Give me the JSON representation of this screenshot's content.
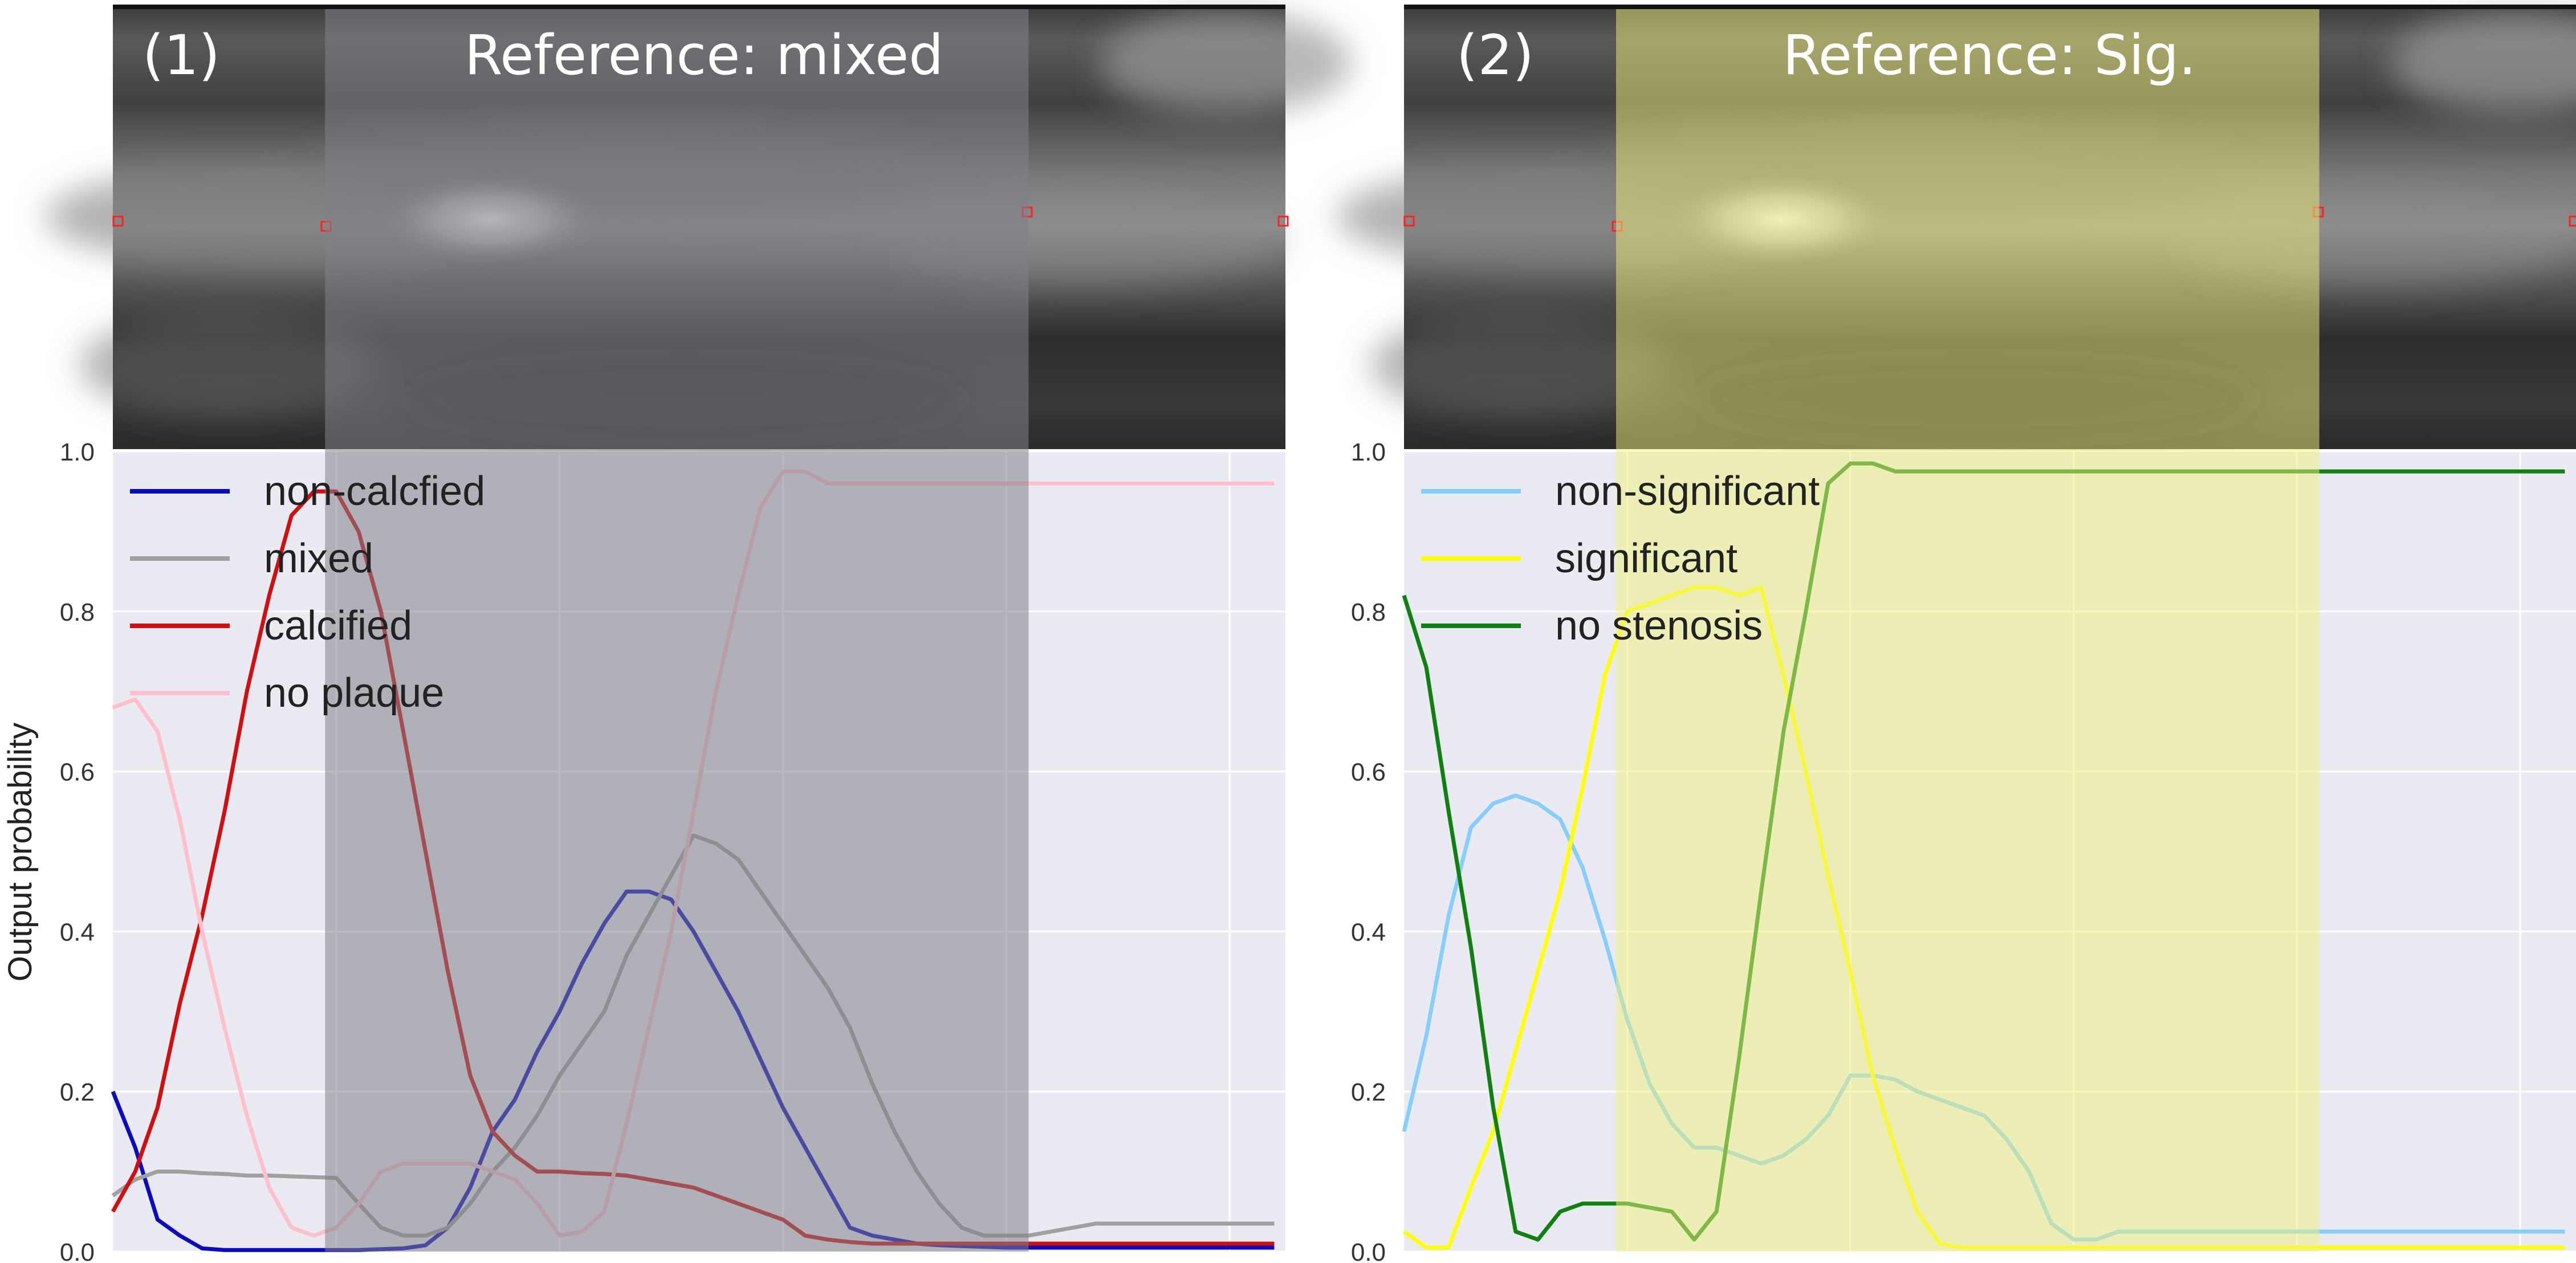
{
  "panels": [
    {
      "panel_label": "(1)",
      "reference_label": "Reference: mixed",
      "highlight_color": "#808088",
      "highlight_opacity": 0.55
    },
    {
      "panel_label": "(2)",
      "reference_label": "Reference: Sig.",
      "highlight_color": "#f0f07a",
      "highlight_opacity": 0.5
    }
  ],
  "chart_data": [
    {
      "type": "line",
      "title": "",
      "xlabel": "",
      "ylabel": "Output probability",
      "ylim": [
        0,
        1
      ],
      "yticks": [
        "0.0",
        "0.2",
        "0.4",
        "0.6",
        "0.8",
        "1.0"
      ],
      "grid": true,
      "legend_position": "top-left",
      "highlight_range": [
        9.5,
        41
      ],
      "xlim": [
        0,
        52.5
      ],
      "x": [
        0,
        1,
        2,
        3,
        4,
        5,
        6,
        7,
        8,
        9,
        10,
        11,
        12,
        13,
        14,
        15,
        16,
        17,
        18,
        19,
        20,
        21,
        22,
        23,
        24,
        25,
        26,
        27,
        28,
        29,
        30,
        31,
        32,
        33,
        34,
        35,
        36,
        37,
        38,
        39,
        40,
        41,
        42,
        43,
        44,
        45,
        46,
        47,
        48,
        49,
        50,
        51,
        52
      ],
      "series": [
        {
          "name": "non-calcfied",
          "color": "#0a0ac0",
          "values": [
            0.2,
            0.13,
            0.04,
            0.02,
            0.004,
            0.002,
            0.002,
            0.002,
            0.002,
            0.002,
            0.002,
            0.002,
            0.003,
            0.004,
            0.008,
            0.03,
            0.08,
            0.15,
            0.19,
            0.25,
            0.3,
            0.36,
            0.41,
            0.45,
            0.45,
            0.44,
            0.4,
            0.35,
            0.3,
            0.24,
            0.18,
            0.13,
            0.08,
            0.03,
            0.02,
            0.015,
            0.01,
            0.008,
            0.007,
            0.006,
            0.005,
            0.005,
            0.005,
            0.005,
            0.005,
            0.005,
            0.005,
            0.005,
            0.005,
            0.005,
            0.005,
            0.005,
            0.005
          ]
        },
        {
          "name": "mixed",
          "color": "#a0a0a0",
          "values": [
            0.07,
            0.09,
            0.1,
            0.1,
            0.098,
            0.097,
            0.095,
            0.095,
            0.094,
            0.093,
            0.092,
            0.06,
            0.03,
            0.02,
            0.02,
            0.03,
            0.06,
            0.1,
            0.13,
            0.17,
            0.22,
            0.26,
            0.3,
            0.37,
            0.42,
            0.47,
            0.52,
            0.51,
            0.49,
            0.45,
            0.41,
            0.37,
            0.33,
            0.28,
            0.21,
            0.15,
            0.1,
            0.06,
            0.03,
            0.02,
            0.02,
            0.02,
            0.025,
            0.03,
            0.035,
            0.035,
            0.035,
            0.035,
            0.035,
            0.035,
            0.035,
            0.035,
            0.035
          ]
        },
        {
          "name": "calcified",
          "color": "#d01010",
          "values": [
            0.05,
            0.1,
            0.18,
            0.31,
            0.42,
            0.55,
            0.7,
            0.82,
            0.92,
            0.95,
            0.95,
            0.9,
            0.8,
            0.65,
            0.5,
            0.35,
            0.22,
            0.15,
            0.12,
            0.1,
            0.1,
            0.098,
            0.097,
            0.095,
            0.09,
            0.085,
            0.08,
            0.07,
            0.06,
            0.05,
            0.04,
            0.02,
            0.015,
            0.012,
            0.01,
            0.01,
            0.01,
            0.01,
            0.01,
            0.01,
            0.01,
            0.01,
            0.01,
            0.01,
            0.01,
            0.01,
            0.01,
            0.01,
            0.01,
            0.01,
            0.01,
            0.01,
            0.01
          ]
        },
        {
          "name": "no plaque",
          "color": "#ffc0cb",
          "values": [
            0.68,
            0.69,
            0.65,
            0.54,
            0.4,
            0.28,
            0.17,
            0.08,
            0.03,
            0.02,
            0.03,
            0.06,
            0.1,
            0.11,
            0.11,
            0.11,
            0.11,
            0.1,
            0.09,
            0.06,
            0.02,
            0.025,
            0.05,
            0.16,
            0.28,
            0.4,
            0.55,
            0.7,
            0.82,
            0.93,
            0.975,
            0.975,
            0.96,
            0.96,
            0.96,
            0.96,
            0.96,
            0.96,
            0.96,
            0.96,
            0.96,
            0.96,
            0.96,
            0.96,
            0.96,
            0.96,
            0.96,
            0.96,
            0.96,
            0.96,
            0.96,
            0.96,
            0.96
          ]
        }
      ]
    },
    {
      "type": "line",
      "title": "",
      "xlabel": "",
      "ylabel": "",
      "ylim": [
        0,
        1
      ],
      "yticks": [
        "0.0",
        "0.2",
        "0.4",
        "0.6",
        "0.8",
        "1.0"
      ],
      "grid": true,
      "legend_position": "top-left",
      "highlight_range": [
        9.5,
        41
      ],
      "xlim": [
        0,
        52.5
      ],
      "x": [
        0,
        1,
        2,
        3,
        4,
        5,
        6,
        7,
        8,
        9,
        10,
        11,
        12,
        13,
        14,
        15,
        16,
        17,
        18,
        19,
        20,
        21,
        22,
        23,
        24,
        25,
        26,
        27,
        28,
        29,
        30,
        31,
        32,
        33,
        34,
        35,
        36,
        37,
        38,
        39,
        40,
        41,
        42,
        43,
        44,
        45,
        46,
        47,
        48,
        49,
        50,
        51,
        52
      ],
      "series": [
        {
          "name": "non-significant",
          "color": "#87cefa",
          "values": [
            0.15,
            0.27,
            0.42,
            0.53,
            0.56,
            0.57,
            0.56,
            0.54,
            0.48,
            0.39,
            0.29,
            0.21,
            0.16,
            0.13,
            0.13,
            0.12,
            0.11,
            0.12,
            0.14,
            0.17,
            0.22,
            0.22,
            0.215,
            0.2,
            0.19,
            0.18,
            0.17,
            0.14,
            0.1,
            0.035,
            0.015,
            0.015,
            0.025,
            0.025,
            0.025,
            0.025,
            0.025,
            0.025,
            0.025,
            0.025,
            0.025,
            0.025,
            0.025,
            0.025,
            0.025,
            0.025,
            0.025,
            0.025,
            0.025,
            0.025,
            0.025,
            0.025,
            0.025
          ]
        },
        {
          "name": "significant",
          "color": "#ffff00",
          "values": [
            0.025,
            0.005,
            0.005,
            0.08,
            0.15,
            0.25,
            0.35,
            0.45,
            0.58,
            0.72,
            0.8,
            0.81,
            0.82,
            0.83,
            0.83,
            0.82,
            0.83,
            0.72,
            0.6,
            0.47,
            0.35,
            0.22,
            0.13,
            0.05,
            0.01,
            0.005,
            0.005,
            0.005,
            0.005,
            0.005,
            0.005,
            0.005,
            0.005,
            0.005,
            0.005,
            0.005,
            0.005,
            0.005,
            0.005,
            0.005,
            0.005,
            0.005,
            0.005,
            0.005,
            0.005,
            0.005,
            0.005,
            0.005,
            0.005,
            0.005,
            0.005,
            0.005,
            0.005
          ]
        },
        {
          "name": "no stenosis",
          "color": "#108010",
          "values": [
            0.82,
            0.73,
            0.55,
            0.38,
            0.18,
            0.025,
            0.015,
            0.05,
            0.06,
            0.06,
            0.06,
            0.055,
            0.05,
            0.015,
            0.05,
            0.24,
            0.45,
            0.65,
            0.8,
            0.96,
            0.985,
            0.985,
            0.975,
            0.975,
            0.975,
            0.975,
            0.975,
            0.975,
            0.975,
            0.975,
            0.975,
            0.975,
            0.975,
            0.975,
            0.975,
            0.975,
            0.975,
            0.975,
            0.975,
            0.975,
            0.975,
            0.975,
            0.975,
            0.975,
            0.975,
            0.975,
            0.975,
            0.975,
            0.975,
            0.975,
            0.975,
            0.975,
            0.975
          ]
        }
      ]
    }
  ]
}
